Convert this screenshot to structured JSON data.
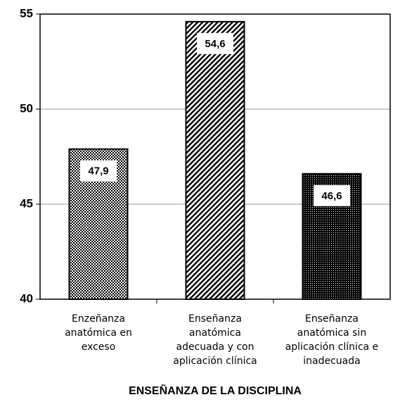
{
  "chart_data": {
    "type": "bar",
    "categories": [
      "Enzeñanza\nanatómica en\nexceso",
      "Enseñanza\nanatómica\nadecuada y con\naplicación clínica",
      "Enseñanza\nanatómica sin\naplicación clínica e\ninadecuada"
    ],
    "values": [
      47.9,
      54.6,
      46.6
    ],
    "value_labels": [
      "47,9",
      "54,6",
      "46,6"
    ],
    "color": "#000000",
    "ylim": [
      40,
      55
    ],
    "yticks": [
      40,
      45,
      50,
      55
    ],
    "grid": true,
    "x_label": "ENSEÑANZA DE LA DISCIPLINA"
  }
}
